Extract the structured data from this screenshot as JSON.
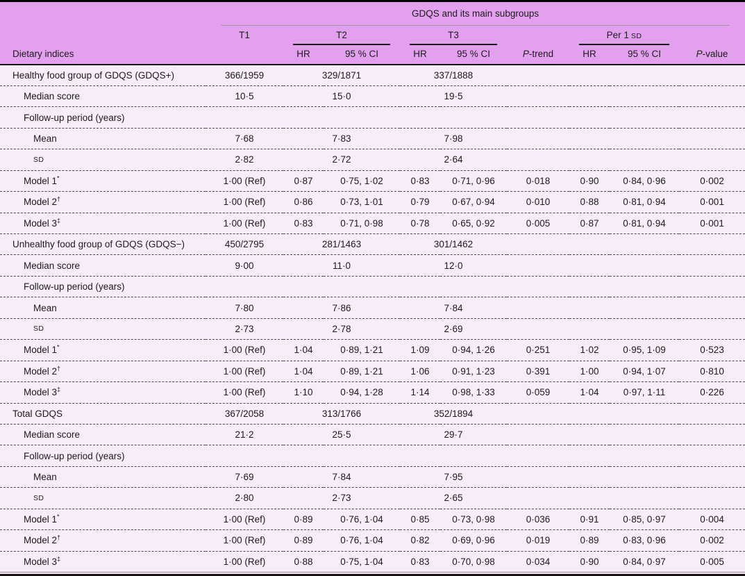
{
  "header": {
    "span_title": "GDQS and its main subgroups",
    "label_col": "Dietary indices",
    "t1": "T1",
    "t2": "T2",
    "t3": "T3",
    "per_sd_prefix": "Per 1",
    "per_sd_sc": "SD",
    "hr": "HR",
    "ci": "95 % CI",
    "p": "P",
    "trend_suffix": "-trend",
    "value_suffix": "-value"
  },
  "colors": {
    "header_background": "#e3a0ee",
    "body_background": "#f8ecf9",
    "text": "#1b1b1b"
  },
  "sections": [
    {
      "rows": [
        {
          "label": "Healthy food group of GDQS (GDQS+)",
          "indent": 0,
          "type": "span",
          "values": [
            "366/1959",
            "329/1871",
            "337/1888"
          ]
        },
        {
          "label": "Median score",
          "indent": 1,
          "type": "span",
          "values": [
            "10·5",
            "15·0",
            "19·5"
          ]
        },
        {
          "label": "Follow-up period (years)",
          "indent": 1,
          "type": "label"
        },
        {
          "label": "Mean",
          "indent": 2,
          "type": "span",
          "values": [
            "7·68",
            "7·83",
            "7·98"
          ]
        },
        {
          "label": "SD",
          "indent": 2,
          "type": "span",
          "smallcaps": true,
          "values": [
            "2·82",
            "2·72",
            "2·64"
          ]
        },
        {
          "label": "Model 1",
          "sup": "*",
          "indent": 1,
          "type": "full",
          "values": [
            "1·00 (Ref)",
            "0·87",
            "0·75, 1·02",
            "0·83",
            "0·71, 0·96",
            "0·018",
            "0·90",
            "0·84, 0·96",
            "0·002"
          ]
        },
        {
          "label": "Model 2",
          "sup": "†",
          "indent": 1,
          "type": "full",
          "values": [
            "1·00 (Ref)",
            "0·86",
            "0·73, 1·01",
            "0·79",
            "0·67, 0·94",
            "0·010",
            "0·88",
            "0·81, 0·94",
            "0·001"
          ]
        },
        {
          "label": "Model 3",
          "sup": "‡",
          "indent": 1,
          "type": "full",
          "values": [
            "1·00 (Ref)",
            "0·83",
            "0·71, 0·98",
            "0·78",
            "0·65, 0·92",
            "0·005",
            "0·87",
            "0·81, 0·94",
            "0·001"
          ]
        }
      ]
    },
    {
      "rows": [
        {
          "label": "Unhealthy food group of GDQS (GDQS−)",
          "indent": 0,
          "type": "span",
          "values": [
            "450/2795",
            "281/1463",
            "301/1462"
          ]
        },
        {
          "label": "Median score",
          "indent": 1,
          "type": "span",
          "values": [
            "9·00",
            "11·0",
            "12·0"
          ]
        },
        {
          "label": "Follow-up period (years)",
          "indent": 1,
          "type": "label"
        },
        {
          "label": "Mean",
          "indent": 2,
          "type": "span",
          "values": [
            "7·80",
            "7·86",
            "7·84"
          ]
        },
        {
          "label": "SD",
          "indent": 2,
          "type": "span",
          "smallcaps": true,
          "values": [
            "2·73",
            "2·78",
            "2·69"
          ]
        },
        {
          "label": "Model 1",
          "sup": "*",
          "indent": 1,
          "type": "full",
          "values": [
            "1·00 (Ref)",
            "1·04",
            "0·89, 1·21",
            "1·09",
            "0·94, 1·26",
            "0·251",
            "1·02",
            "0·95, 1·09",
            "0·523"
          ]
        },
        {
          "label": "Model 2",
          "sup": "†",
          "indent": 1,
          "type": "full",
          "values": [
            "1·00 (Ref)",
            "1·04",
            "0·89, 1·21",
            "1·06",
            "0·91, 1·23",
            "0·391",
            "1·00",
            "0·94, 1·07",
            "0·810"
          ]
        },
        {
          "label": "Model 3",
          "sup": "‡",
          "indent": 1,
          "type": "full",
          "values": [
            "1·00 (Ref)",
            "1·10",
            "0·94, 1·28",
            "1·14",
            "0·98, 1·33",
            "0·059",
            "1·04",
            "0·97, 1·11",
            "0·226"
          ]
        }
      ]
    },
    {
      "rows": [
        {
          "label": "Total GDQS",
          "indent": 0,
          "type": "span",
          "values": [
            "367/2058",
            "313/1766",
            "352/1894"
          ]
        },
        {
          "label": "Median score",
          "indent": 1,
          "type": "span",
          "values": [
            "21·2",
            "25·5",
            "29·7"
          ]
        },
        {
          "label": "Follow-up period (years)",
          "indent": 1,
          "type": "label"
        },
        {
          "label": "Mean",
          "indent": 2,
          "type": "span",
          "values": [
            "7·69",
            "7·84",
            "7·95"
          ]
        },
        {
          "label": "SD",
          "indent": 2,
          "type": "span",
          "smallcaps": true,
          "values": [
            "2·80",
            "2·73",
            "2·65"
          ]
        },
        {
          "label": "Model 1",
          "sup": "*",
          "indent": 1,
          "type": "full",
          "values": [
            "1·00 (Ref)",
            "0·89",
            "0·76, 1·04",
            "0·85",
            "0·73, 0·98",
            "0·036",
            "0·91",
            "0·85, 0·97",
            "0·004"
          ]
        },
        {
          "label": "Model 2",
          "sup": "†",
          "indent": 1,
          "type": "full",
          "values": [
            "1·00 (Ref)",
            "0·89",
            "0·76, 1·04",
            "0·82",
            "0·69, 0·96",
            "0·019",
            "0·89",
            "0·83, 0·96",
            "0·002"
          ]
        },
        {
          "label": "Model 3",
          "sup": "‡",
          "indent": 1,
          "type": "full",
          "values": [
            "1·00 (Ref)",
            "0·88",
            "0·75, 1·04",
            "0·83",
            "0·70, 0·98",
            "0·034",
            "0·90",
            "0·84, 0·97",
            "0·005"
          ]
        }
      ]
    }
  ]
}
